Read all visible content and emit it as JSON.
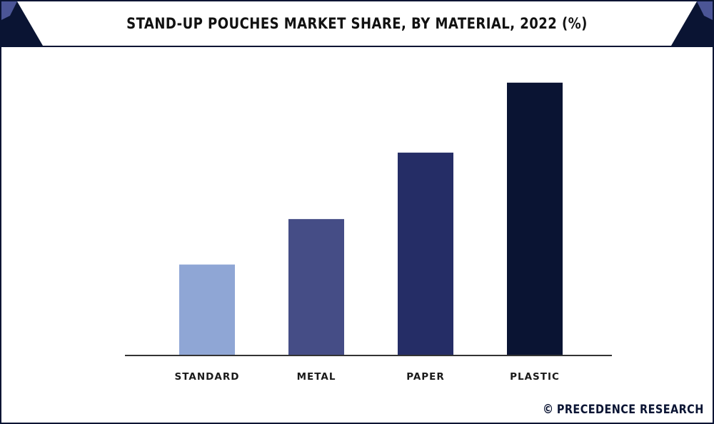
{
  "header": {
    "title": "STAND-UP POUCHES MARKET SHARE, BY MATERIAL, 2022 (%)"
  },
  "colors": {
    "frame": "#0a1433",
    "corner_dark": "#0a1433",
    "corner_light": "#4b5596",
    "axis": "#333333"
  },
  "chart_data": {
    "type": "bar",
    "title": "STAND-UP POUCHES MARKET SHARE, BY MATERIAL, 2022 (%)",
    "categories": [
      "STANDARD",
      "METAL",
      "PAPER",
      "PLASTIC"
    ],
    "values": [
      13,
      19.5,
      29,
      39
    ],
    "bar_colors": [
      "#8fa6d5",
      "#454d86",
      "#252d66",
      "#0a1433"
    ],
    "ylim": [
      0,
      40
    ],
    "grid": false,
    "legend": "none",
    "xlabel": "",
    "ylabel": ""
  },
  "footer": {
    "brand_icon": "copyright-icon",
    "brand_symbol": "©",
    "brand_text": "PRECEDENCE RESEARCH"
  }
}
